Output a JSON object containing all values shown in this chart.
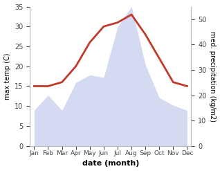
{
  "months": [
    "Jan",
    "Feb",
    "Mar",
    "Apr",
    "May",
    "Jun",
    "Jul",
    "Aug",
    "Sep",
    "Oct",
    "Nov",
    "Dec"
  ],
  "temperature": [
    15,
    15,
    16,
    20,
    26,
    30,
    31,
    33,
    28,
    22,
    16,
    15
  ],
  "precipitation": [
    14,
    20,
    14,
    25,
    28,
    27,
    47,
    55,
    32,
    19,
    16,
    14
  ],
  "temp_color": "#c0392b",
  "precip_color": "#b0bce8",
  "ylim_left": [
    0,
    35
  ],
  "ylim_right": [
    0,
    55
  ],
  "ylabel_left": "max temp (C)",
  "ylabel_right": "med. precipitation (kg/m2)",
  "xlabel": "date (month)",
  "background_color": "#ffffff",
  "temp_linewidth": 2.0,
  "precip_alpha": 0.55
}
